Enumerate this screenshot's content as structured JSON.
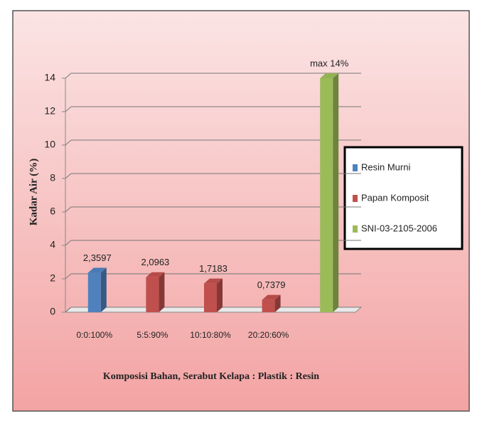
{
  "chart_data": {
    "type": "bar3d",
    "y_label": "Kadar Air (%)",
    "x_label": "Komposisi Bahan, Serabut Kelapa : Plastik : Resin",
    "categories": [
      "0:0:100%",
      "5:5:90%",
      "10:10:80%",
      "20:20:60%",
      null
    ],
    "series": [
      {
        "name": "Resin Murni",
        "color": "#4f81bd",
        "values": [
          2.3597,
          null,
          null,
          null,
          null
        ],
        "value_labels": [
          "2,3597",
          null,
          null,
          null,
          null
        ]
      },
      {
        "name": "Papan Komposit",
        "color": "#c0504d",
        "values": [
          null,
          2.0963,
          1.7183,
          0.7379,
          null
        ],
        "value_labels": [
          null,
          "2,0963",
          "1,7183",
          "0,7379",
          null
        ]
      },
      {
        "name": "SNI-03-2105-2006",
        "color": "#9bbb59",
        "values": [
          null,
          null,
          null,
          null,
          14
        ],
        "value_labels": [
          null,
          null,
          null,
          null,
          "max 14%"
        ]
      }
    ],
    "ylim": [
      0,
      14
    ],
    "yticks": [
      0,
      2,
      4,
      6,
      8,
      10,
      12,
      14
    ],
    "grid": true,
    "legend": "right"
  }
}
